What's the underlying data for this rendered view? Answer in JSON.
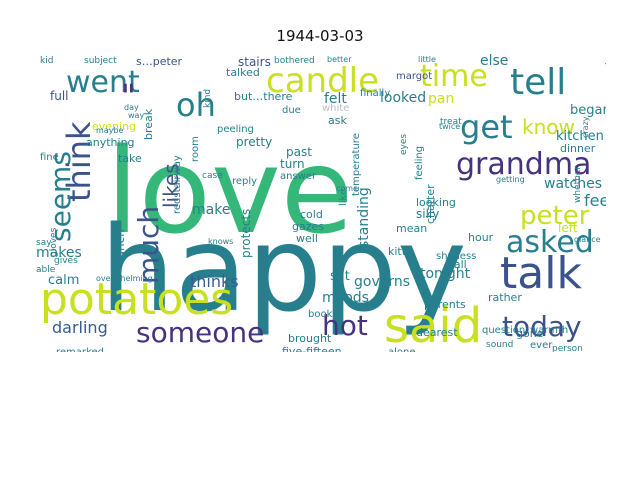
{
  "title": "1944-03-03",
  "colors": {
    "purple": "#46327e",
    "indigo": "#3b528b",
    "blue": "#365c8d",
    "teal": "#277f8e",
    "teal2": "#21918c",
    "green": "#35b779",
    "lime": "#90d743",
    "yellow": "#c8e020",
    "paleyellow": "#dde318",
    "lightgray": "#bfbfbf"
  },
  "words": [
    {
      "text": "love",
      "color": "green"
    },
    {
      "text": "happy",
      "color": "teal"
    },
    {
      "text": "potatoes",
      "color": "yellow"
    },
    {
      "text": "said",
      "color": "yellow"
    },
    {
      "text": "talk",
      "color": "indigo"
    },
    {
      "text": "candle",
      "color": "yellow"
    },
    {
      "text": "tell",
      "color": "teal"
    },
    {
      "text": "grandma",
      "color": "purple"
    },
    {
      "text": "went",
      "color": "teal"
    },
    {
      "text": "time",
      "color": "yellow"
    },
    {
      "text": "oh",
      "color": "teal"
    },
    {
      "text": "get",
      "color": "teal"
    },
    {
      "text": "think",
      "color": "indigo"
    },
    {
      "text": "seems",
      "color": "teal"
    },
    {
      "text": "much",
      "color": "indigo"
    },
    {
      "text": "asked",
      "color": "teal"
    },
    {
      "text": "peter",
      "color": "yellow"
    },
    {
      "text": "someone",
      "color": "purple"
    },
    {
      "text": "hot",
      "color": "purple"
    },
    {
      "text": "today",
      "color": "indigo"
    },
    {
      "text": "know",
      "color": "yellow"
    },
    {
      "text": "likes",
      "color": "indigo"
    },
    {
      "text": "thinks",
      "color": "blue"
    },
    {
      "text": "darling",
      "color": "blue"
    },
    {
      "text": "\"",
      "color": "purple"
    },
    {
      "text": "stairs",
      "color": "indigo"
    },
    {
      "text": "s…peter",
      "color": "indigo"
    },
    {
      "text": "but…there",
      "color": "teal"
    },
    {
      "text": "subject",
      "color": "teal"
    },
    {
      "text": "kid",
      "color": "teal"
    },
    {
      "text": "margot",
      "color": "indigo"
    },
    {
      "text": "else",
      "color": "teal"
    },
    {
      "text": "felt",
      "color": "teal"
    },
    {
      "text": "looked",
      "color": "teal"
    },
    {
      "text": "pan",
      "color": "yellow"
    },
    {
      "text": "began",
      "color": "teal"
    },
    {
      "text": "kitchen",
      "color": "teal"
    },
    {
      "text": "watches",
      "color": "teal"
    },
    {
      "text": "feel",
      "color": "teal"
    },
    {
      "text": "left",
      "color": "yellow"
    },
    {
      "text": "break",
      "color": "teal"
    },
    {
      "text": "evening",
      "color": "yellow"
    },
    {
      "text": "anything",
      "color": "teal"
    },
    {
      "text": "full",
      "color": "indigo"
    },
    {
      "text": "lunch",
      "color": "teal"
    },
    {
      "text": "makes",
      "color": "teal"
    },
    {
      "text": "calm",
      "color": "teal"
    },
    {
      "text": "make",
      "color": "teal"
    },
    {
      "text": "protects",
      "color": "teal"
    },
    {
      "text": "standing",
      "color": "teal"
    },
    {
      "text": "sat",
      "color": "teal"
    },
    {
      "text": "governs",
      "color": "teal"
    },
    {
      "text": "tonight",
      "color": "teal"
    },
    {
      "text": "moods",
      "color": "teal"
    },
    {
      "text": "silly",
      "color": "teal"
    },
    {
      "text": "hour",
      "color": "teal"
    },
    {
      "text": "fall",
      "color": "teal"
    },
    {
      "text": "parents",
      "color": "teal"
    },
    {
      "text": "redstairway",
      "color": "teal"
    },
    {
      "text": "cold",
      "color": "teal"
    },
    {
      "text": "gazes",
      "color": "teal"
    },
    {
      "text": "well",
      "color": "teal"
    },
    {
      "text": "mean",
      "color": "teal"
    },
    {
      "text": "kitty",
      "color": "teal"
    },
    {
      "text": "dearest",
      "color": "teal"
    },
    {
      "text": "brought",
      "color": "teal"
    },
    {
      "text": "books",
      "color": "teal"
    },
    {
      "text": "five-fifteen",
      "color": "teal"
    },
    {
      "text": "alone",
      "color": "teal"
    },
    {
      "text": "question",
      "color": "teal"
    },
    {
      "text": "warmth",
      "color": "teal"
    },
    {
      "text": "sound",
      "color": "teal"
    },
    {
      "text": "person",
      "color": "teal"
    },
    {
      "text": "rather",
      "color": "teal"
    },
    {
      "text": "remarked",
      "color": "teal"
    },
    {
      "text": "pretty",
      "color": "teal"
    },
    {
      "text": "past",
      "color": "teal"
    },
    {
      "text": "turn",
      "color": "teal"
    },
    {
      "text": "answer",
      "color": "teal"
    },
    {
      "text": "peeling",
      "color": "teal"
    },
    {
      "text": "room",
      "color": "teal"
    },
    {
      "text": "case",
      "color": "teal"
    },
    {
      "text": "take",
      "color": "teal"
    },
    {
      "text": "dinner",
      "color": "teal"
    },
    {
      "text": "gone",
      "color": "teal"
    },
    {
      "text": "ever",
      "color": "teal"
    },
    {
      "text": "feeling",
      "color": "teal"
    },
    {
      "text": "chatter",
      "color": "teal"
    },
    {
      "text": "shyness",
      "color": "teal"
    },
    {
      "text": "looking",
      "color": "teal"
    },
    {
      "text": "temperature",
      "color": "teal"
    },
    {
      "text": "like",
      "color": "teal"
    },
    {
      "text": "ask",
      "color": "teal"
    },
    {
      "text": "white",
      "color": "lightgray"
    },
    {
      "text": "reply",
      "color": "teal"
    },
    {
      "text": "talked",
      "color": "teal"
    },
    {
      "text": "bothered",
      "color": "teal"
    },
    {
      "text": "better",
      "color": "teal"
    },
    {
      "text": "little",
      "color": "teal"
    },
    {
      "text": "managed",
      "color": "teal"
    },
    {
      "text": "whether",
      "color": "teal"
    },
    {
      "text": "treat",
      "color": "teal"
    },
    {
      "text": "twice",
      "color": "teal"
    },
    {
      "text": "finally",
      "color": "teal"
    },
    {
      "text": "due",
      "color": "teal"
    },
    {
      "text": "fine",
      "color": "teal"
    },
    {
      "text": "maybe",
      "color": "teal"
    },
    {
      "text": "day",
      "color": "teal"
    },
    {
      "text": "way",
      "color": "teal"
    },
    {
      "text": "kind",
      "color": "teal"
    },
    {
      "text": "gloves",
      "color": "teal"
    },
    {
      "text": "gives",
      "color": "teal"
    },
    {
      "text": "able",
      "color": "teal"
    },
    {
      "text": "say",
      "color": "teal"
    },
    {
      "text": "knows",
      "color": "teal"
    },
    {
      "text": "overwhelming",
      "color": "teal"
    },
    {
      "text": "come",
      "color": "teal"
    },
    {
      "text": "glance",
      "color": "teal"
    },
    {
      "text": "crazy",
      "color": "teal"
    },
    {
      "text": "eyes",
      "color": "teal"
    },
    {
      "text": "getting",
      "color": "teal"
    }
  ]
}
